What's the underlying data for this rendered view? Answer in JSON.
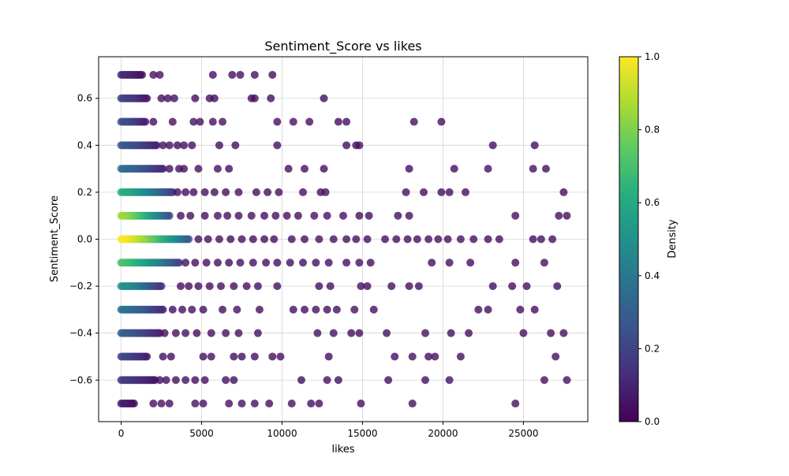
{
  "chart_data": {
    "type": "scatter",
    "title": "Sentiment_Score vs likes",
    "xlabel": "likes",
    "ylabel": "Sentiment_Score",
    "xlim": [
      -1400,
      29000
    ],
    "ylim": [
      -0.777,
      0.777
    ],
    "xticks": [
      0,
      5000,
      10000,
      15000,
      20000,
      25000
    ],
    "yticks": [
      -0.6,
      -0.4,
      -0.2,
      0.0,
      0.2,
      0.4,
      0.6
    ],
    "xtick_labels": [
      "0",
      "5000",
      "10000",
      "15000",
      "20000",
      "25000"
    ],
    "ytick_labels": [
      "−0.6",
      "−0.4",
      "−0.2",
      "0.0",
      "0.2",
      "0.4",
      "0.6"
    ],
    "grid": true,
    "colorbar": {
      "label": "Density",
      "range": [
        0.0,
        1.0
      ],
      "ticks": [
        0.0,
        0.2,
        0.4,
        0.6,
        0.8,
        1.0
      ],
      "tick_labels": [
        "0.0",
        "0.2",
        "0.4",
        "0.6",
        "0.8",
        "1.0"
      ],
      "colormap": "viridis"
    },
    "rows": [
      {
        "y": 0.7,
        "dense_max": 1300,
        "density": 0.12,
        "x": [
          2000,
          2400,
          5700,
          6900,
          7400,
          8300,
          9400
        ]
      },
      {
        "y": 0.6,
        "dense_max": 1600,
        "density": 0.2,
        "x": [
          2500,
          2900,
          3300,
          4600,
          5500,
          5800,
          8100,
          8300,
          9300,
          12600
        ]
      },
      {
        "y": 0.5,
        "dense_max": 1500,
        "density": 0.24,
        "x": [
          2000,
          3200,
          4500,
          4900,
          5700,
          6300,
          9700,
          10700,
          11700,
          13500,
          14000,
          18200,
          19900
        ]
      },
      {
        "y": 0.4,
        "dense_max": 2200,
        "density": 0.28,
        "x": [
          2600,
          3000,
          3500,
          3900,
          4400,
          6100,
          7100,
          9700,
          14000,
          14600,
          14800,
          23100,
          25700
        ]
      },
      {
        "y": 0.3,
        "dense_max": 2600,
        "density": 0.36,
        "x": [
          3000,
          3600,
          3900,
          4800,
          6000,
          6700,
          10400,
          11400,
          12600,
          17900,
          20700,
          22800,
          25600,
          26400
        ]
      },
      {
        "y": 0.2,
        "dense_max": 3200,
        "density": 0.62,
        "x": [
          3500,
          4000,
          4500,
          5200,
          5800,
          6500,
          7300,
          8400,
          9100,
          9800,
          11300,
          12400,
          12700,
          17700,
          18800,
          19900,
          20400,
          21400,
          27500
        ]
      },
      {
        "y": 0.1,
        "dense_max": 3000,
        "density": 0.85,
        "x": [
          3700,
          4300,
          5200,
          6000,
          6600,
          7300,
          8100,
          8900,
          9600,
          10300,
          11000,
          12000,
          12800,
          13800,
          14800,
          15400,
          17200,
          17900,
          24500,
          27200,
          27700
        ]
      },
      {
        "y": 0.0,
        "dense_max": 4200,
        "density": 1.0,
        "x": [
          4800,
          5400,
          6100,
          6800,
          7500,
          8200,
          8900,
          9500,
          10600,
          11400,
          12300,
          13200,
          14000,
          14600,
          15300,
          16400,
          17100,
          17800,
          18400,
          19100,
          19700,
          20300,
          21100,
          21900,
          22800,
          23500,
          25600,
          26100,
          26800
        ]
      },
      {
        "y": -0.1,
        "dense_max": 3600,
        "density": 0.7,
        "x": [
          4000,
          4600,
          5300,
          6000,
          6700,
          7400,
          8200,
          9000,
          9700,
          10500,
          11300,
          12100,
          12900,
          14000,
          14800,
          15500,
          19300,
          20400,
          21700,
          24500,
          26300
        ]
      },
      {
        "y": -0.2,
        "dense_max": 2500,
        "density": 0.5,
        "x": [
          3700,
          4200,
          4800,
          5500,
          6200,
          7000,
          7800,
          8500,
          9700,
          12300,
          13000,
          14900,
          15300,
          16800,
          17900,
          18500,
          23100,
          24300,
          25200,
          27100
        ]
      },
      {
        "y": -0.3,
        "dense_max": 2600,
        "density": 0.38,
        "x": [
          3200,
          3800,
          4400,
          5100,
          6300,
          7200,
          8600,
          10700,
          11400,
          12100,
          12800,
          13400,
          14500,
          15700,
          22200,
          22800,
          24800,
          25700
        ]
      },
      {
        "y": -0.4,
        "dense_max": 2400,
        "density": 0.3,
        "x": [
          2700,
          3400,
          4000,
          4700,
          5600,
          6500,
          7300,
          8500,
          12200,
          13200,
          14300,
          14800,
          16500,
          18900,
          20500,
          21600,
          25000,
          26700,
          27500
        ]
      },
      {
        "y": -0.5,
        "dense_max": 1600,
        "density": 0.22,
        "x": [
          2600,
          3100,
          5100,
          5600,
          7000,
          7500,
          8300,
          9400,
          9900,
          12900,
          17000,
          18100,
          19100,
          19500,
          21100,
          27000
        ]
      },
      {
        "y": -0.6,
        "dense_max": 2100,
        "density": 0.18,
        "x": [
          2400,
          2800,
          3400,
          4000,
          4600,
          5200,
          6500,
          7000,
          11200,
          12800,
          13500,
          16600,
          18900,
          20400,
          26300,
          27700
        ]
      },
      {
        "y": -0.7,
        "dense_max": 800,
        "density": 0.08,
        "x": [
          2000,
          2500,
          3000,
          4600,
          5100,
          6700,
          7500,
          8300,
          9200,
          10600,
          11800,
          12300,
          14900,
          18100,
          24500
        ]
      }
    ]
  }
}
